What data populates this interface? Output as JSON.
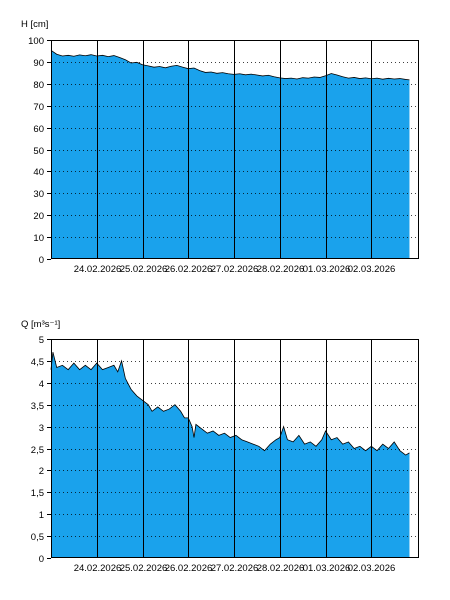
{
  "colors": {
    "fill": "#1aa2ec",
    "line": "#000000",
    "grid": "#000000",
    "background": "#ffffff"
  },
  "chart_data": [
    {
      "type": "area",
      "ylabel": "H [cm]",
      "ylim": [
        0,
        100
      ],
      "yticks": [
        0,
        10,
        20,
        30,
        40,
        50,
        60,
        70,
        80,
        90,
        100
      ],
      "ytick_labels": [
        "0",
        "10",
        "20",
        "30",
        "40",
        "50",
        "60",
        "70",
        "80",
        "90",
        "100"
      ],
      "xlim": [
        "2026-02-23T00:00",
        "2026-03-03T01:00"
      ],
      "xtick_labels": [
        "24.02.2026",
        "25.02.2026",
        "26.02.2026",
        "27.02.2026",
        "28.02.2026",
        "01.03.2026",
        "02.03.2026"
      ],
      "day_lines": [
        "2026-02-24",
        "2026-02-25",
        "2026-02-26",
        "2026-02-27",
        "2026-02-28",
        "2026-03-01",
        "2026-03-02"
      ],
      "grid": "horizontal dotted",
      "series": [
        {
          "points": [
            [
              "2026-02-23T00:00",
              95.3
            ],
            [
              "2026-02-23T03:00",
              93.5
            ],
            [
              "2026-02-23T06:00",
              92.7
            ],
            [
              "2026-02-23T09:00",
              93.0
            ],
            [
              "2026-02-23T12:00",
              92.6
            ],
            [
              "2026-02-23T15:00",
              93.2
            ],
            [
              "2026-02-23T18:00",
              92.8
            ],
            [
              "2026-02-23T21:00",
              93.3
            ],
            [
              "2026-02-24T00:00",
              92.7
            ],
            [
              "2026-02-24T03:00",
              93.0
            ],
            [
              "2026-02-24T06:00",
              92.4
            ],
            [
              "2026-02-24T09:00",
              92.9
            ],
            [
              "2026-02-24T12:00",
              92.0
            ],
            [
              "2026-02-24T15:00",
              91.0
            ],
            [
              "2026-02-24T18:00",
              89.5
            ],
            [
              "2026-02-24T21:00",
              89.8
            ],
            [
              "2026-02-25T00:00",
              88.7
            ],
            [
              "2026-02-25T03:00",
              88.2
            ],
            [
              "2026-02-25T06:00",
              87.6
            ],
            [
              "2026-02-25T09:00",
              87.9
            ],
            [
              "2026-02-25T12:00",
              87.3
            ],
            [
              "2026-02-25T15:00",
              88.0
            ],
            [
              "2026-02-25T18:00",
              88.4
            ],
            [
              "2026-02-25T21:00",
              87.6
            ],
            [
              "2026-02-26T00:00",
              86.9
            ],
            [
              "2026-02-26T03:00",
              87.2
            ],
            [
              "2026-02-26T06:00",
              86.0
            ],
            [
              "2026-02-26T09:00",
              85.2
            ],
            [
              "2026-02-26T12:00",
              85.4
            ],
            [
              "2026-02-26T15:00",
              84.8
            ],
            [
              "2026-02-26T18:00",
              85.1
            ],
            [
              "2026-02-26T21:00",
              84.6
            ],
            [
              "2026-02-27T00:00",
              84.3
            ],
            [
              "2026-02-27T03:00",
              84.6
            ],
            [
              "2026-02-27T06:00",
              84.1
            ],
            [
              "2026-02-27T09:00",
              84.4
            ],
            [
              "2026-02-27T12:00",
              84.0
            ],
            [
              "2026-02-27T15:00",
              83.6
            ],
            [
              "2026-02-27T18:00",
              83.9
            ],
            [
              "2026-02-27T21:00",
              83.2
            ],
            [
              "2026-02-28T00:00",
              82.7
            ],
            [
              "2026-02-28T03:00",
              82.4
            ],
            [
              "2026-02-28T06:00",
              82.6
            ],
            [
              "2026-02-28T09:00",
              82.2
            ],
            [
              "2026-02-28T12:00",
              82.8
            ],
            [
              "2026-02-28T15:00",
              82.6
            ],
            [
              "2026-02-28T18:00",
              83.1
            ],
            [
              "2026-02-28T21:00",
              82.9
            ],
            [
              "2026-03-01T00:00",
              83.7
            ],
            [
              "2026-03-01T03:00",
              84.7
            ],
            [
              "2026-03-01T06:00",
              84.0
            ],
            [
              "2026-03-01T09:00",
              83.2
            ],
            [
              "2026-03-01T12:00",
              82.6
            ],
            [
              "2026-03-01T15:00",
              82.9
            ],
            [
              "2026-03-01T18:00",
              82.4
            ],
            [
              "2026-03-01T21:00",
              82.7
            ],
            [
              "2026-03-02T00:00",
              82.3
            ],
            [
              "2026-03-02T03:00",
              82.6
            ],
            [
              "2026-03-02T06:00",
              82.1
            ],
            [
              "2026-03-02T09:00",
              82.5
            ],
            [
              "2026-03-02T12:00",
              82.2
            ],
            [
              "2026-03-02T15:00",
              82.4
            ],
            [
              "2026-03-02T18:00",
              82.0
            ],
            [
              "2026-03-02T20:00",
              81.8
            ]
          ]
        }
      ]
    },
    {
      "type": "area",
      "ylabel": "Q [m³s⁻¹]",
      "ylim": [
        0,
        5
      ],
      "yticks": [
        0,
        0.5,
        1,
        1.5,
        2,
        2.5,
        3,
        3.5,
        4,
        4.5,
        5
      ],
      "ytick_labels": [
        "0",
        "0,5",
        "1",
        "1,5",
        "2",
        "2,5",
        "3",
        "3,5",
        "4",
        "4,5",
        "5"
      ],
      "xlim": [
        "2026-02-23T00:00",
        "2026-03-03T01:00"
      ],
      "xtick_labels": [
        "24.02.2026",
        "25.02.2026",
        "26.02.2026",
        "27.02.2026",
        "28.02.2026",
        "01.03.2026",
        "02.03.2026"
      ],
      "day_lines": [
        "2026-02-24",
        "2026-02-25",
        "2026-02-26",
        "2026-02-27",
        "2026-02-28",
        "2026-03-01",
        "2026-03-02"
      ],
      "grid": "horizontal dotted",
      "series": [
        {
          "points": [
            [
              "2026-02-23T00:00",
              4.3
            ],
            [
              "2026-02-23T01:00",
              4.7
            ],
            [
              "2026-02-23T03:00",
              4.35
            ],
            [
              "2026-02-23T06:00",
              4.4
            ],
            [
              "2026-02-23T09:00",
              4.3
            ],
            [
              "2026-02-23T12:00",
              4.45
            ],
            [
              "2026-02-23T15:00",
              4.3
            ],
            [
              "2026-02-23T18:00",
              4.4
            ],
            [
              "2026-02-23T21:00",
              4.3
            ],
            [
              "2026-02-24T00:00",
              4.45
            ],
            [
              "2026-02-24T03:00",
              4.3
            ],
            [
              "2026-02-24T06:00",
              4.35
            ],
            [
              "2026-02-24T09:00",
              4.4
            ],
            [
              "2026-02-24T11:00",
              4.25
            ],
            [
              "2026-02-24T13:00",
              4.5
            ],
            [
              "2026-02-24T15:00",
              4.1
            ],
            [
              "2026-02-24T18:00",
              3.85
            ],
            [
              "2026-02-24T21:00",
              3.7
            ],
            [
              "2026-02-25T00:00",
              3.6
            ],
            [
              "2026-02-25T03:00",
              3.5
            ],
            [
              "2026-02-25T05:00",
              3.35
            ],
            [
              "2026-02-25T08:00",
              3.45
            ],
            [
              "2026-02-25T11:00",
              3.35
            ],
            [
              "2026-02-25T14:00",
              3.4
            ],
            [
              "2026-02-25T17:00",
              3.5
            ],
            [
              "2026-02-25T20:00",
              3.35
            ],
            [
              "2026-02-25T22:00",
              3.2
            ],
            [
              "2026-02-26T00:00",
              3.2
            ],
            [
              "2026-02-26T02:00",
              3.0
            ],
            [
              "2026-02-26T03:00",
              2.75
            ],
            [
              "2026-02-26T04:00",
              3.05
            ],
            [
              "2026-02-26T07:00",
              2.95
            ],
            [
              "2026-02-26T10:00",
              2.85
            ],
            [
              "2026-02-26T13:00",
              2.9
            ],
            [
              "2026-02-26T16:00",
              2.8
            ],
            [
              "2026-02-26T19:00",
              2.85
            ],
            [
              "2026-02-26T22:00",
              2.75
            ],
            [
              "2026-02-27T01:00",
              2.8
            ],
            [
              "2026-02-27T04:00",
              2.7
            ],
            [
              "2026-02-27T07:00",
              2.65
            ],
            [
              "2026-02-27T10:00",
              2.6
            ],
            [
              "2026-02-27T13:00",
              2.55
            ],
            [
              "2026-02-27T16:00",
              2.45
            ],
            [
              "2026-02-27T19:00",
              2.6
            ],
            [
              "2026-02-27T22:00",
              2.7
            ],
            [
              "2026-02-28T00:00",
              2.75
            ],
            [
              "2026-02-28T02:00",
              3.0
            ],
            [
              "2026-02-28T04:00",
              2.7
            ],
            [
              "2026-02-28T07:00",
              2.65
            ],
            [
              "2026-02-28T10:00",
              2.8
            ],
            [
              "2026-02-28T13:00",
              2.6
            ],
            [
              "2026-02-28T16:00",
              2.65
            ],
            [
              "2026-02-28T19:00",
              2.55
            ],
            [
              "2026-02-28T22:00",
              2.7
            ],
            [
              "2026-03-01T00:00",
              2.9
            ],
            [
              "2026-03-01T03:00",
              2.7
            ],
            [
              "2026-03-01T06:00",
              2.75
            ],
            [
              "2026-03-01T09:00",
              2.6
            ],
            [
              "2026-03-01T12:00",
              2.65
            ],
            [
              "2026-03-01T15:00",
              2.5
            ],
            [
              "2026-03-01T18:00",
              2.55
            ],
            [
              "2026-03-01T21:00",
              2.45
            ],
            [
              "2026-03-02T00:00",
              2.55
            ],
            [
              "2026-03-02T03:00",
              2.45
            ],
            [
              "2026-03-02T06:00",
              2.6
            ],
            [
              "2026-03-02T09:00",
              2.5
            ],
            [
              "2026-03-02T12:00",
              2.65
            ],
            [
              "2026-03-02T15:00",
              2.45
            ],
            [
              "2026-03-02T18:00",
              2.35
            ],
            [
              "2026-03-02T20:00",
              2.4
            ]
          ]
        }
      ]
    }
  ]
}
